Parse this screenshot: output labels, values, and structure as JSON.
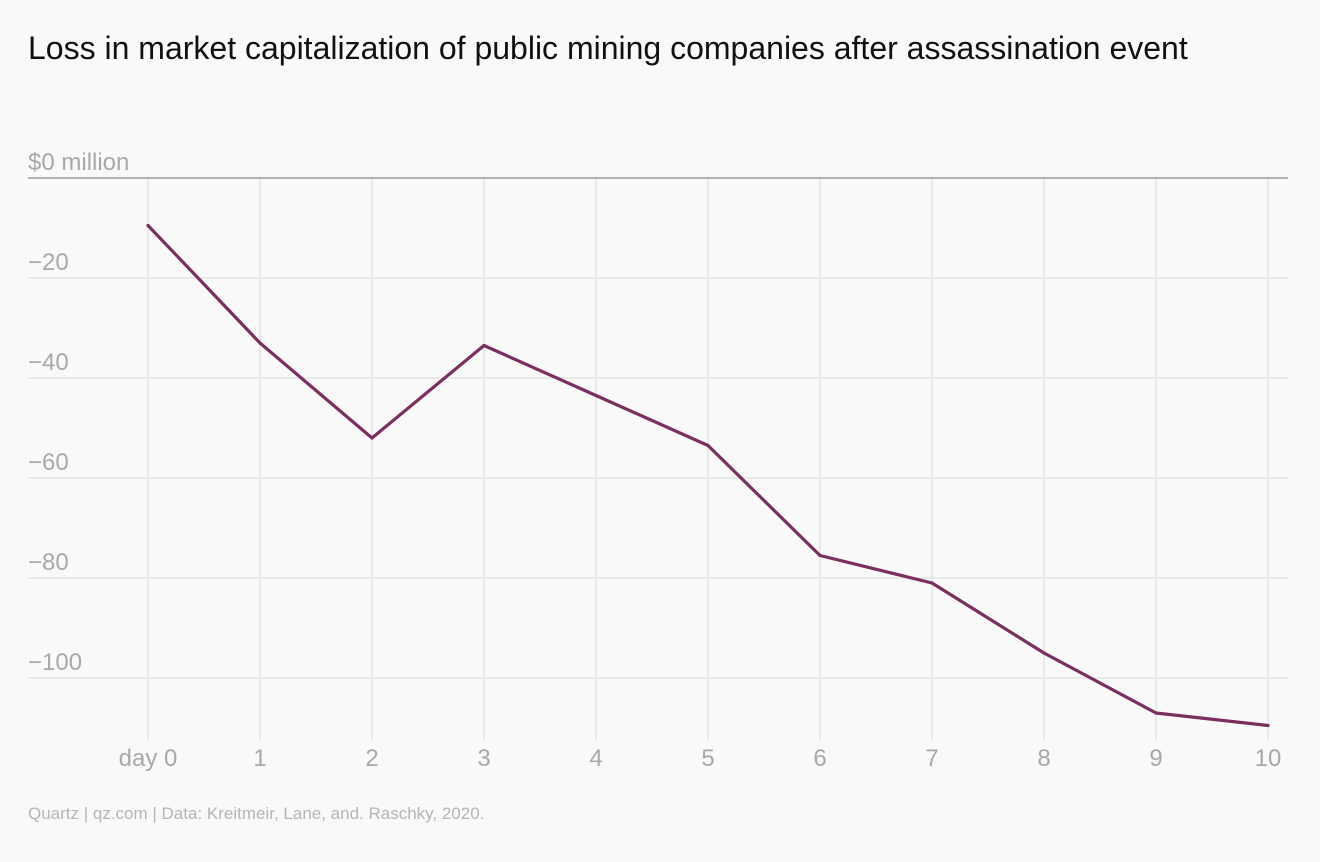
{
  "title": "Loss in market capitalization of public mining companies after assassination event",
  "source": "Quartz | qz.com | Data: Kreitmeir, Lane, and. Raschky, 2020.",
  "chart_data": {
    "type": "line",
    "title": "Loss in market capitalization of public mining companies after assassination event",
    "xlabel": "",
    "ylabel": "",
    "x": [
      0,
      1,
      2,
      3,
      4,
      5,
      6,
      7,
      8,
      9,
      10
    ],
    "x_tick_labels": [
      "day 0",
      "1",
      "2",
      "3",
      "4",
      "5",
      "6",
      "7",
      "8",
      "9",
      "10"
    ],
    "y_ticks": [
      0,
      -20,
      -40,
      -60,
      -80,
      -100
    ],
    "y_tick_labels": [
      "$0 million",
      "−20",
      "−40",
      "−60",
      "−80",
      "−100"
    ],
    "ylim": [
      -110,
      0
    ],
    "xlim": [
      0,
      10
    ],
    "grid": true,
    "series": [
      {
        "color": "#7b2f5e",
        "values": [
          -9.5,
          -33,
          -52,
          -33.5,
          -43.5,
          -53.5,
          -75.5,
          -81,
          -95,
          -107,
          -109.5
        ]
      }
    ]
  }
}
